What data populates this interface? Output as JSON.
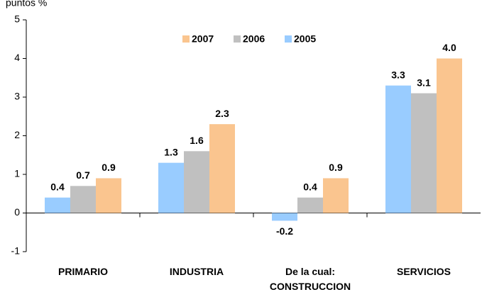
{
  "chart_data": {
    "type": "bar",
    "y_label": "puntos %",
    "categories": [
      "PRIMARIO",
      "INDUSTRIA",
      "De la cual:\nCONSTRUCCION",
      "SERVICIOS"
    ],
    "series": [
      {
        "name": "2005",
        "color": "#99ccff",
        "values": [
          0.4,
          1.3,
          -0.2,
          3.3
        ]
      },
      {
        "name": "2006",
        "color": "#c0c0c0",
        "values": [
          0.7,
          1.6,
          0.4,
          3.1
        ]
      },
      {
        "name": "2007",
        "color": "#fac58f",
        "values": [
          0.9,
          2.3,
          0.9,
          4
        ],
        "value_labels": [
          "0.9",
          "2.3",
          "0.9",
          "4.0"
        ]
      }
    ],
    "ylim": [
      -1,
      5
    ],
    "yticks": [
      -1,
      0,
      1,
      2,
      3,
      4,
      5
    ],
    "grid": false
  }
}
